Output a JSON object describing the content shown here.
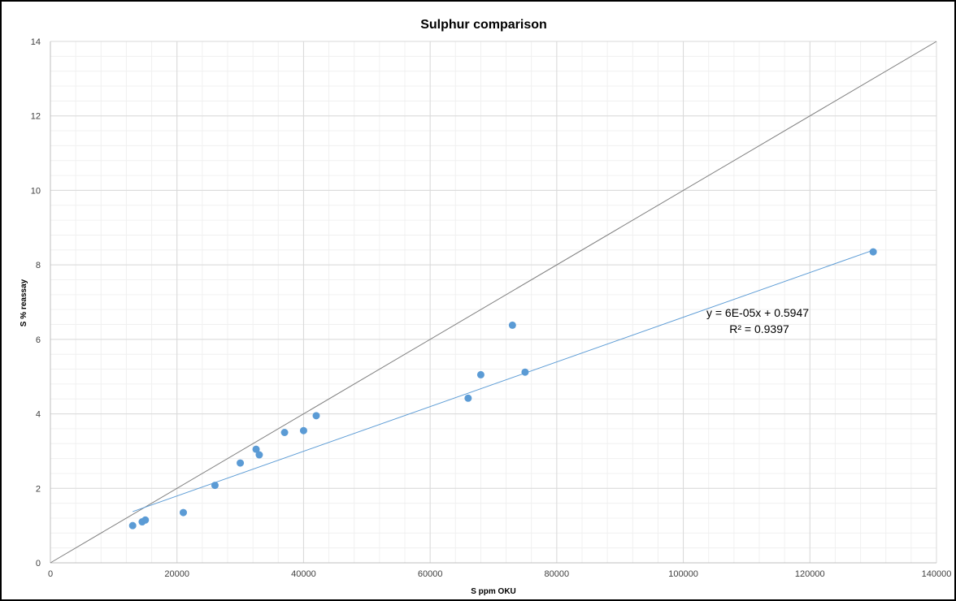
{
  "chart_data": {
    "type": "scatter",
    "title": "Sulphur comparison",
    "xlabel": "S ppm OKU",
    "ylabel": "S % reassay",
    "xlim": [
      0,
      140000
    ],
    "ylim": [
      0,
      14
    ],
    "x_ticks": [
      0,
      20000,
      40000,
      60000,
      80000,
      100000,
      120000,
      140000
    ],
    "y_ticks": [
      0,
      2,
      4,
      6,
      8,
      10,
      12,
      14
    ],
    "grid": "major and minor",
    "legend": "none",
    "series": [
      {
        "type": "scatter",
        "color": "#5b9bd5",
        "x": [
          13000,
          14500,
          15000,
          21000,
          26000,
          30000,
          32500,
          33000,
          37000,
          40000,
          42000,
          66000,
          68000,
          73000,
          75000,
          130000
        ],
        "y": [
          1.0,
          1.1,
          1.15,
          1.35,
          2.08,
          2.68,
          3.05,
          2.9,
          3.5,
          3.55,
          3.95,
          4.42,
          5.05,
          6.38,
          5.12,
          8.35
        ]
      }
    ],
    "trendline": {
      "type": "linear",
      "slope": 6e-05,
      "intercept": 0.5947,
      "x_range": [
        13000,
        130000
      ],
      "color": "#5b9bd5",
      "equation_label": "y = 6E-05x + 0.5947",
      "r2_label": "R² = 0.9397"
    },
    "reference_line": {
      "type": "1:1",
      "x": [
        0,
        140000
      ],
      "y": [
        0,
        14
      ],
      "color": "#808080"
    }
  }
}
